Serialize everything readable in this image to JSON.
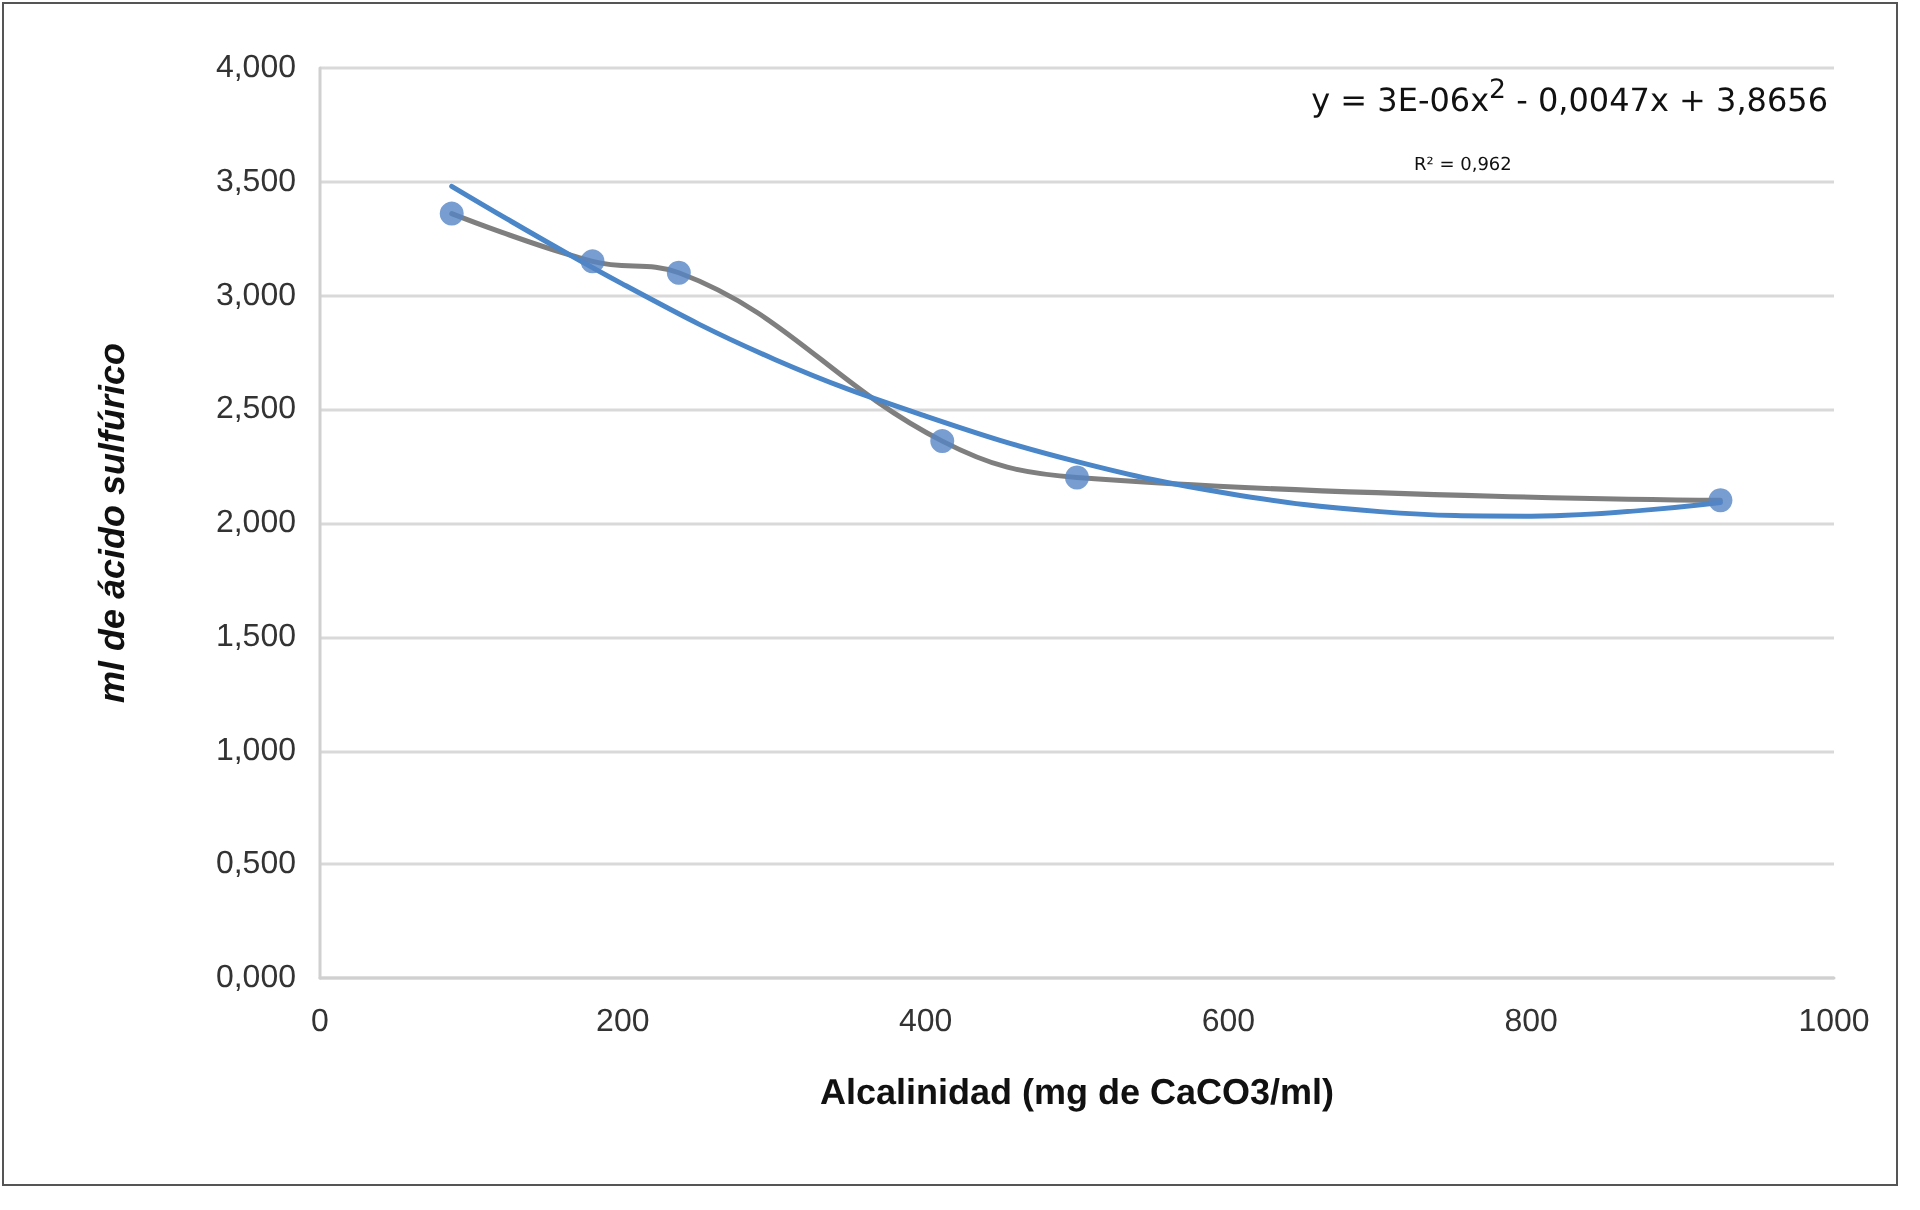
{
  "chart_data": {
    "type": "line",
    "xlabel": "Alcalinidad (mg de CaCO3/ml)",
    "ylabel": "ml de ácido sulfúrico",
    "xlim": [
      0,
      1000
    ],
    "xticks": [
      0,
      200,
      400,
      600,
      800,
      1000
    ],
    "ylim": [
      0,
      4
    ],
    "yticks": [
      {
        "value": 0,
        "label": "0,000"
      },
      {
        "value": 0.5,
        "label": "0,500"
      },
      {
        "value": 1,
        "label": "1,000"
      },
      {
        "value": 1.5,
        "label": "1,500"
      },
      {
        "value": 2,
        "label": "2,000"
      },
      {
        "value": 2.5,
        "label": "2,500"
      },
      {
        "value": 3,
        "label": "3,000"
      },
      {
        "value": 3.5,
        "label": "3,500"
      },
      {
        "value": 4,
        "label": "4,000"
      }
    ],
    "grid": "y",
    "series": [
      {
        "type": "line",
        "color": "#7f7f7f",
        "marker": "none",
        "x": [
          87,
          180,
          237,
          411,
          500,
          925
        ],
        "values": [
          3.36,
          3.15,
          3.1,
          2.36,
          2.2,
          2.1
        ]
      },
      {
        "type": "scatter",
        "color": "#5585c5",
        "marker": "circle",
        "x": [
          87,
          180,
          237,
          411,
          500,
          925
        ],
        "values": [
          3.36,
          3.15,
          3.1,
          2.36,
          2.2,
          2.1
        ]
      },
      {
        "type": "line",
        "color": "#4a86c8",
        "marker": "none",
        "x": [
          87,
          200,
          300,
          400,
          500,
          600,
          700,
          800,
          925
        ],
        "values": [
          3.48,
          3.05,
          2.72,
          2.47,
          2.27,
          2.13,
          2.05,
          2.03,
          2.09
        ]
      }
    ],
    "annotations": [
      "y = 3E-06x$^{2}$ - 0,0047x + 3,8656",
      "R² = 0,962"
    ]
  }
}
